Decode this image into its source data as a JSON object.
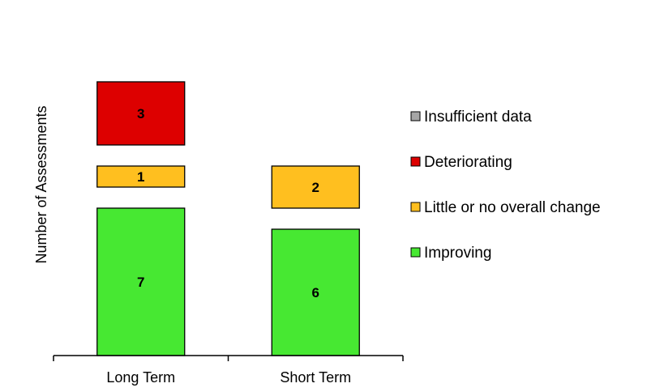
{
  "chart_data": {
    "type": "bar",
    "stacked": true,
    "categories": [
      "Long Term",
      "Short Term"
    ],
    "ylabel": "Number of Assessments",
    "xlabel": "",
    "title": "",
    "series": [
      {
        "name": "Improving",
        "values": [
          7,
          6
        ],
        "color": "#47e832"
      },
      {
        "name": "Little or no overall change",
        "values": [
          1,
          2
        ],
        "color": "#ffbf1f"
      },
      {
        "name": "Deteriorating",
        "values": [
          3,
          0
        ],
        "color": "#dd0000"
      },
      {
        "name": "Insufficient data",
        "values": [
          0,
          0
        ],
        "color": "#a6a6a6"
      }
    ],
    "legend_order": [
      "Insufficient data",
      "Deteriorating",
      "Little or no overall change",
      "Improving"
    ],
    "legend_position": "right",
    "grid": false
  }
}
